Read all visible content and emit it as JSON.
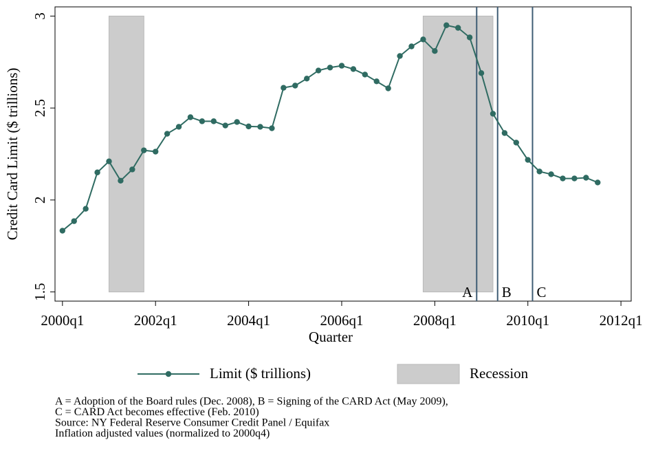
{
  "chart_data": {
    "type": "line",
    "x_label": "Quarter",
    "y_label": "Credit Card Limit ($ trillions)",
    "x": [
      2000,
      2000.25,
      2000.5,
      2000.75,
      2001,
      2001.25,
      2001.5,
      2001.75,
      2002,
      2002.25,
      2002.5,
      2002.75,
      2003,
      2003.25,
      2003.5,
      2003.75,
      2004,
      2004.25,
      2004.5,
      2004.75,
      2005,
      2005.25,
      2005.5,
      2005.75,
      2006,
      2006.25,
      2006.5,
      2006.75,
      2007,
      2007.25,
      2007.5,
      2007.75,
      2008,
      2008.25,
      2008.5,
      2008.75,
      2009,
      2009.25,
      2009.5,
      2009.75,
      2010,
      2010.25,
      2010.5,
      2010.75,
      2011,
      2011.25,
      2011.5
    ],
    "series": [
      {
        "name": "Limit ($ trillions)",
        "color": "#2f6b62",
        "values": [
          1.833,
          1.885,
          1.952,
          2.15,
          2.21,
          2.105,
          2.166,
          2.27,
          2.263,
          2.36,
          2.398,
          2.45,
          2.428,
          2.428,
          2.405,
          2.424,
          2.4,
          2.398,
          2.39,
          2.61,
          2.622,
          2.66,
          2.704,
          2.72,
          2.73,
          2.712,
          2.682,
          2.645,
          2.607,
          2.783,
          2.835,
          2.873,
          2.81,
          2.95,
          2.936,
          2.884,
          2.69,
          2.469,
          2.364,
          2.312,
          2.218,
          2.155,
          2.14,
          2.117,
          2.117,
          2.121,
          2.095
        ]
      }
    ],
    "recession_label": "Recession",
    "recession_color": "#cccccc",
    "recession_band": [
      1.5,
      3
    ],
    "recessions": [
      {
        "start": 2001,
        "end": 2001.75
      },
      {
        "start": 2007.75,
        "end": 2009.25
      }
    ],
    "reference_lines": [
      {
        "label": "A",
        "x": 2008.9
      },
      {
        "label": "B",
        "x": 2009.35
      },
      {
        "label": "C",
        "x": 2010.1
      }
    ],
    "reference_color": "#3e5c74",
    "xlim": [
      1999.84,
      2012.22
    ],
    "ylim": [
      1.45,
      3.05
    ],
    "xticks": [
      {
        "value": 2000,
        "label": "2000q1"
      },
      {
        "value": 2002,
        "label": "2002q1"
      },
      {
        "value": 2004,
        "label": "2004q1"
      },
      {
        "value": 2006,
        "label": "2006q1"
      },
      {
        "value": 2008,
        "label": "2008q1"
      },
      {
        "value": 2010,
        "label": "2010q1"
      },
      {
        "value": 2012,
        "label": "2012q1"
      }
    ],
    "yticks": [
      1.5,
      2,
      2.5,
      3
    ],
    "notes": [
      "A = Adoption of the Board rules (Dec. 2008), B = Signing of the CARD Act (May 2009),",
      "C = CARD Act becomes effective (Feb. 2010)",
      "Source: NY Federal Reserve Consumer Credit Panel / Equifax",
      "Inflation adjusted values (normalized to 2000q4)"
    ]
  }
}
